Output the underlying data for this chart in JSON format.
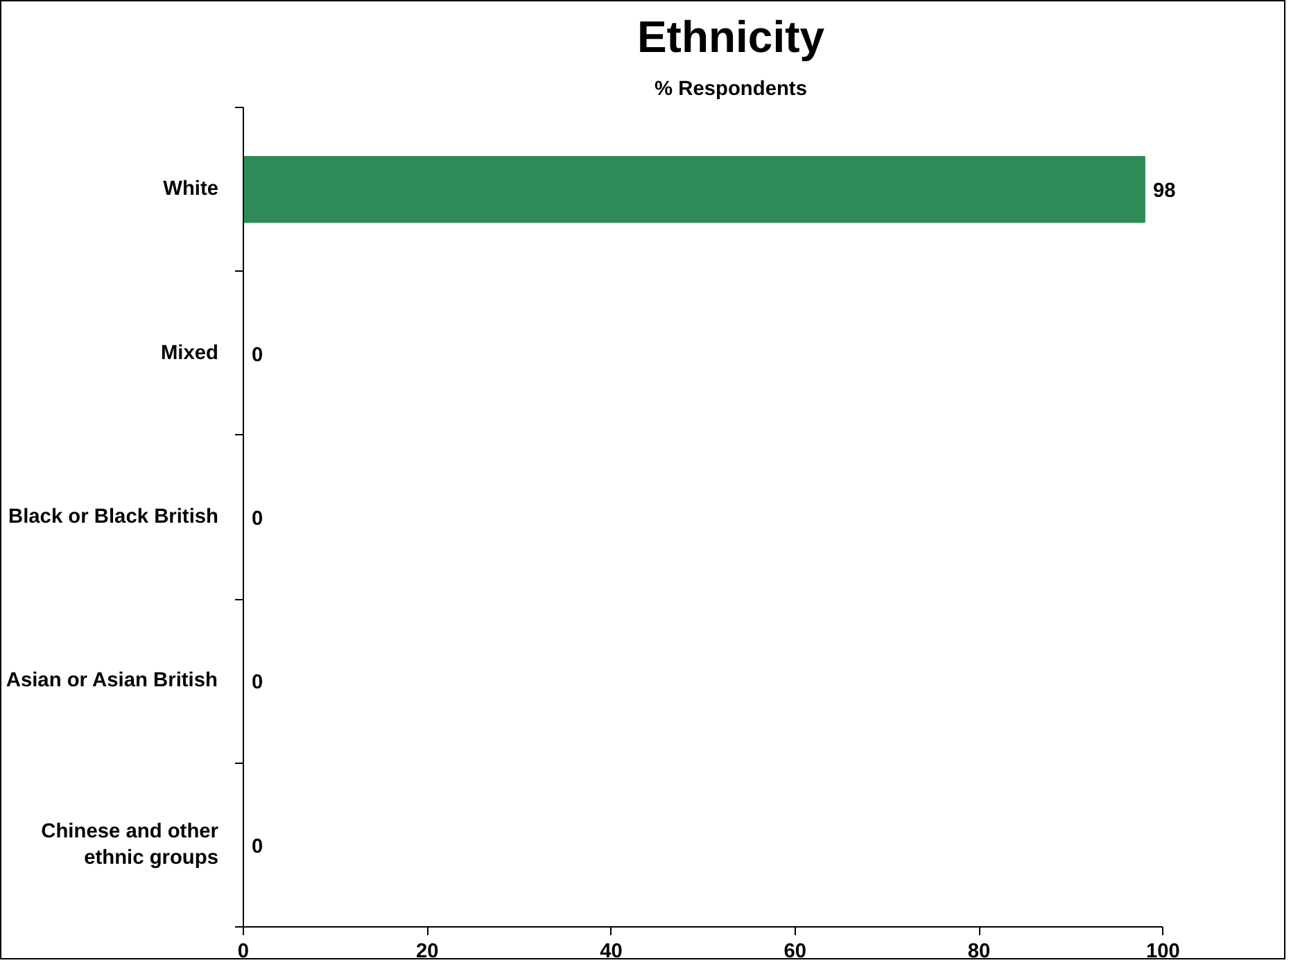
{
  "chart_data": {
    "type": "bar",
    "orientation": "horizontal",
    "title": "Ethnicity",
    "xlabel": "% Respondents",
    "categories": [
      "White",
      "Mixed",
      "Black or Black British",
      "Asian or Asian British",
      "Chinese and other\nethnic groups"
    ],
    "values": [
      98,
      0,
      0,
      0,
      0
    ],
    "color": "#2e8b57",
    "xlim": [
      0,
      100
    ],
    "xticks": [
      0,
      20,
      40,
      60,
      80,
      100
    ],
    "grid": false,
    "data_labels": true,
    "legend": false
  }
}
